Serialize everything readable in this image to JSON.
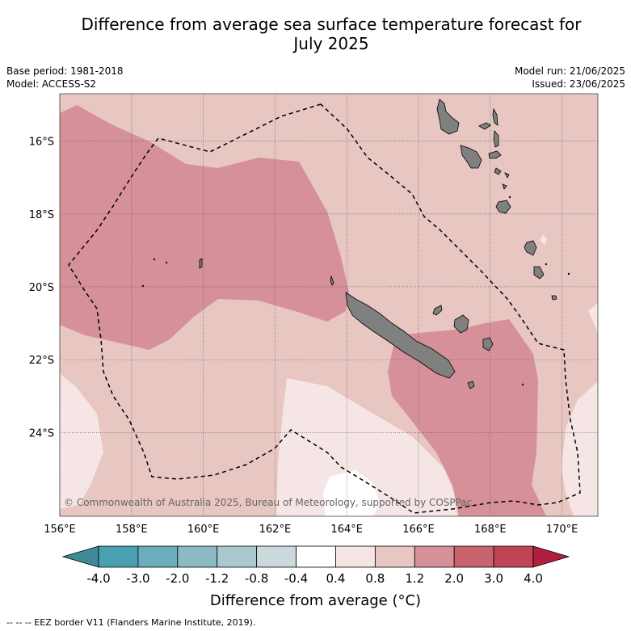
{
  "title_line1": "Difference from average sea surface temperature forecast for",
  "title_line2": "July 2025",
  "meta_left": [
    "Base period: 1981-2018",
    "Model: ACCESS-S2"
  ],
  "meta_right": [
    "Model run: 21/06/2025",
    "Issued: 23/06/2025"
  ],
  "copyright": "© Commonwealth of Australia 2025, Bureau of Meteorology, supported by COSPPac",
  "colorbar_label": "Difference from average (°C)",
  "footer": "-- -- -- EEZ border V11 (Flanders Marine Institute, 2019).",
  "chart_data": {
    "type": "heatmap",
    "lon_range": [
      156,
      171
    ],
    "lat_range": [
      -26.3,
      -14.7
    ],
    "x_ticks": [
      "156°E",
      "158°E",
      "160°E",
      "162°E",
      "164°E",
      "166°E",
      "168°E",
      "170°E"
    ],
    "y_ticks": [
      "16°S",
      "18°S",
      "20°S",
      "22°S",
      "24°S"
    ],
    "colorbar_ticks": [
      "-4.0",
      "-3.0",
      "-2.0",
      "-1.2",
      "-0.8",
      "-0.4",
      "0.4",
      "0.8",
      "1.2",
      "2.0",
      "3.0",
      "4.0"
    ],
    "colorbar_colors": [
      "#4aa0b0",
      "#6aaebb",
      "#8cbac4",
      "#a9c9ce",
      "#cbd9dc",
      "#ffffff",
      "#f5e6e5",
      "#e8c6c2",
      "#d6909a",
      "#c9646f",
      "#bf4556"
    ],
    "colorbar_under": "#3f8a99",
    "colorbar_over": "#b21f3e"
  }
}
